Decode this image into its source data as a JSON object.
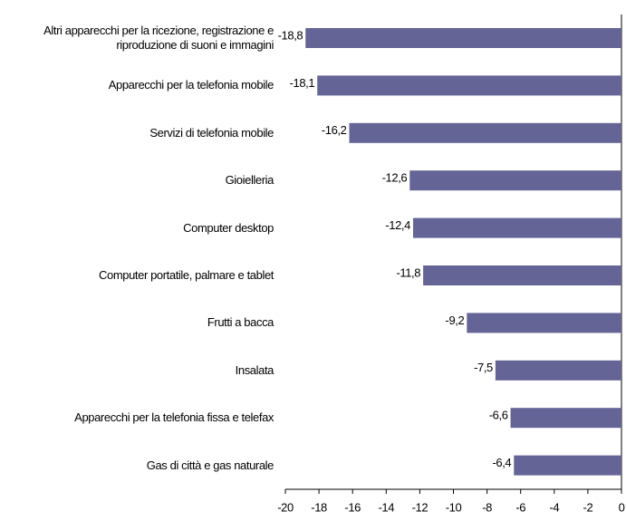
{
  "chart_data": {
    "type": "hbar",
    "categories": [
      "Altri apparecchi per la ricezione, registrazione e riproduzione di suoni e immagini",
      "Apparecchi per la telefonia mobile",
      "Servizi di telefonia mobile",
      "Gioielleria",
      "Computer desktop",
      "Computer portatile, palmare e tablet",
      "Frutti a bacca",
      "Insalata",
      "Apparecchi per la telefonia fissa e telefax",
      "Gas di città e gas naturale"
    ],
    "values": [
      -18.8,
      -18.1,
      -16.2,
      -12.6,
      -12.4,
      -11.8,
      -9.2,
      -7.5,
      -6.6,
      -6.4
    ],
    "value_labels": [
      "-18,8",
      "-18,1",
      "-16,2",
      "-12,6",
      "-12,4",
      "-11,8",
      "-9,2",
      "-7,5",
      "-6,6",
      "-6,4"
    ],
    "color": "#646496",
    "xlim": [
      -20,
      0
    ],
    "xticks": [
      -20,
      -18,
      -16,
      -14,
      -12,
      -10,
      -8,
      -6,
      -4,
      -2,
      0
    ]
  }
}
